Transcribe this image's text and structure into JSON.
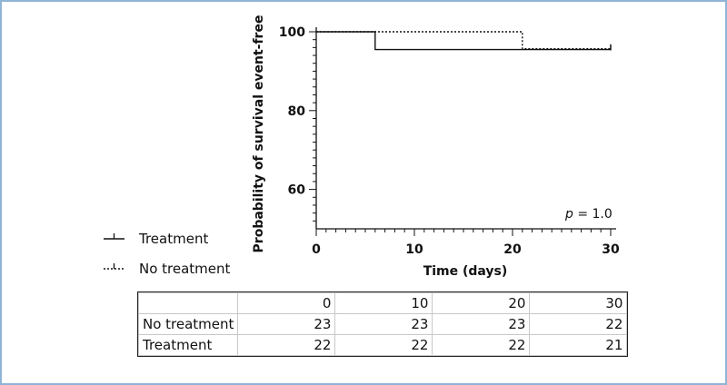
{
  "chart_data": {
    "type": "line",
    "subtype": "kaplan-meier",
    "xlabel": "Time (days)",
    "ylabel": "Probability of  survival event-free",
    "xlim": [
      0,
      30
    ],
    "ylim": [
      50,
      100
    ],
    "xticks": [
      0,
      10,
      20,
      30
    ],
    "yticks": [
      60,
      80,
      100
    ],
    "annotation": {
      "italic": "p",
      "rest": " = 1.0"
    },
    "legend_position": "left",
    "series": [
      {
        "name": "Treatment",
        "style": "solid",
        "steps": [
          [
            0,
            100
          ],
          [
            6,
            95.5
          ],
          [
            30,
            95.5
          ]
        ],
        "censor_times": [
          30
        ]
      },
      {
        "name": "No treatment",
        "style": "dotted",
        "steps": [
          [
            0,
            100
          ],
          [
            21,
            95.7
          ],
          [
            30,
            95.7
          ]
        ],
        "censor_times": [
          30
        ]
      }
    ]
  },
  "legend": [
    {
      "label": "Treatment",
      "style": "solid"
    },
    {
      "label": "No treatment",
      "style": "dotted"
    }
  ],
  "risk_table": {
    "times": [
      "0",
      "10",
      "20",
      "30"
    ],
    "rows": [
      {
        "label": "No treatment",
        "values": [
          "23",
          "23",
          "23",
          "22"
        ]
      },
      {
        "label": "Treatment",
        "values": [
          "22",
          "22",
          "22",
          "21"
        ]
      }
    ]
  },
  "colors": {
    "frame": "#8fb4d6",
    "line": "#111111"
  }
}
